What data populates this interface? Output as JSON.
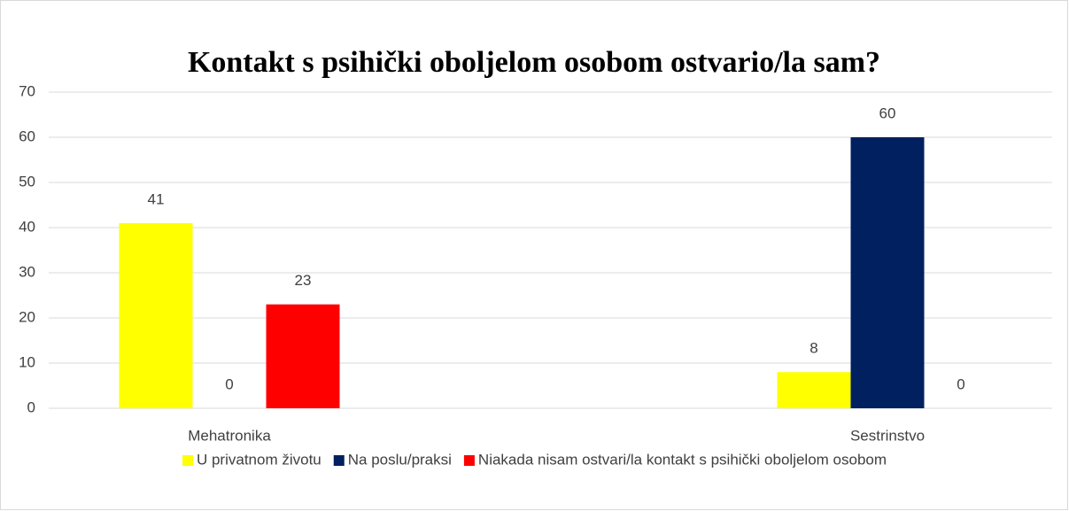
{
  "chart_data": {
    "type": "bar",
    "title": "Kontakt s psihički oboljelom osobom ostvario/la sam?",
    "categories": [
      "Mehatronika",
      "Sestrinstvo"
    ],
    "series": [
      {
        "name": "U privatnom životu",
        "color": "#ffff00",
        "values": [
          41,
          8
        ]
      },
      {
        "name": "Na poslu/praksi",
        "color": "#002060",
        "values": [
          0,
          60
        ]
      },
      {
        "name": "Niakada nisam ostvari/la kontakt s psihički oboljelom osobom",
        "color": "#ff0000",
        "values": [
          23,
          0
        ]
      }
    ],
    "ylim": [
      0,
      70
    ],
    "yticks": [
      0,
      10,
      20,
      30,
      40,
      50,
      60,
      70
    ],
    "grid": true,
    "legend": "bottom",
    "data_labels": true
  }
}
